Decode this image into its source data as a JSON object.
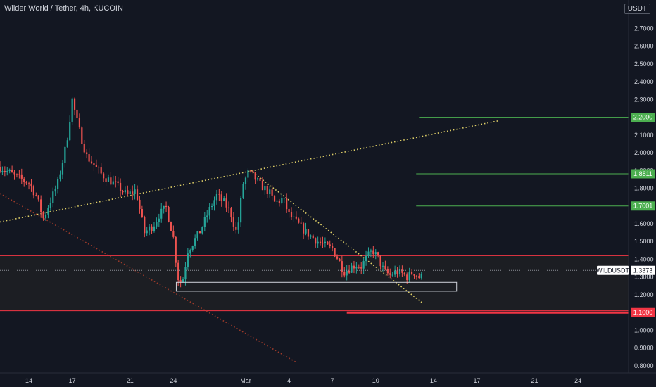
{
  "header": {
    "title": "Wilder World / Tether, 4h, KUCOIN",
    "currency": "USDT"
  },
  "chart_data": {
    "type": "candlestick",
    "symbol": "WILDUSDT",
    "last_price": "1.3373",
    "ylim": [
      0.76,
      2.86
    ],
    "y_ticks": [
      "2.7000",
      "2.6000",
      "2.5000",
      "2.4000",
      "2.3000",
      "2.2000",
      "2.1000",
      "2.0000",
      "1.9000",
      "1.8000",
      "1.7000",
      "1.6000",
      "1.5000",
      "1.4000",
      "1.3000",
      "1.2000",
      "1.1000",
      "1.0000",
      "0.9000",
      "0.8000"
    ],
    "x_ticks": [
      {
        "label": "14",
        "day": 14
      },
      {
        "label": "17",
        "day": 17
      },
      {
        "label": "21",
        "day": 21
      },
      {
        "label": "24",
        "day": 24
      },
      {
        "label": "Mar",
        "day": 29
      },
      {
        "label": "4",
        "day": 32
      },
      {
        "label": "7",
        "day": 35
      },
      {
        "label": "10",
        "day": 38
      },
      {
        "label": "14",
        "day": 42
      },
      {
        "label": "17",
        "day": 45
      },
      {
        "label": "21",
        "day": 49
      },
      {
        "label": "24",
        "day": 52
      }
    ],
    "xlim_day": [
      12,
      55.5
    ],
    "key_levels": [
      {
        "label": "2.2000",
        "value": 2.2,
        "color": "#4caf50",
        "from_day": 41
      },
      {
        "label": "1.8811",
        "value": 1.8811,
        "color": "#4caf50",
        "from_day": 40.8
      },
      {
        "label": "1.7001",
        "value": 1.7001,
        "color": "#4caf50",
        "from_day": 40.8
      },
      {
        "label": "1.1000",
        "value": 1.1,
        "color": "#f23645",
        "from_day": 36
      }
    ],
    "zone": {
      "top": 1.42,
      "bottom": 1.11
    },
    "box": {
      "day_start": 24.2,
      "day_end": 43.6,
      "top": 1.27,
      "bottom": 1.22
    },
    "trendlines": [
      {
        "style": "dotted",
        "color": "#e0d068",
        "from": [
          12,
          1.61
        ],
        "to": [
          46.5,
          2.18
        ]
      },
      {
        "style": "dotted",
        "color": "#e0d068",
        "from": [
          29.5,
          1.89
        ],
        "to": [
          41.3,
          1.15
        ]
      },
      {
        "style": "dotted",
        "color": "#9c3a2a",
        "from": [
          12,
          1.77
        ],
        "to": [
          32.5,
          0.82
        ]
      }
    ],
    "price_path": [
      [
        12,
        1.92
      ],
      [
        13,
        1.87
      ],
      [
        14,
        1.83
      ],
      [
        14.5,
        1.76
      ],
      [
        15,
        1.63
      ],
      [
        16,
        1.83
      ],
      [
        16.6,
        2.05
      ],
      [
        17,
        2.3
      ],
      [
        17.4,
        2.15
      ],
      [
        18,
        1.98
      ],
      [
        19,
        1.88
      ],
      [
        20,
        1.82
      ],
      [
        20.8,
        1.76
      ],
      [
        21.4,
        1.79
      ],
      [
        22,
        1.55
      ],
      [
        22.6,
        1.59
      ],
      [
        23,
        1.65
      ],
      [
        23.5,
        1.69
      ],
      [
        24,
        1.52
      ],
      [
        24.3,
        1.3
      ],
      [
        24.6,
        1.26
      ],
      [
        25,
        1.45
      ],
      [
        25.8,
        1.55
      ],
      [
        26.5,
        1.68
      ],
      [
        27,
        1.76
      ],
      [
        27.6,
        1.71
      ],
      [
        28,
        1.65
      ],
      [
        28.4,
        1.54
      ],
      [
        28.8,
        1.82
      ],
      [
        29.2,
        1.89
      ],
      [
        29.6,
        1.86
      ],
      [
        30,
        1.82
      ],
      [
        30.6,
        1.78
      ],
      [
        31,
        1.72
      ],
      [
        31.6,
        1.74
      ],
      [
        32,
        1.65
      ],
      [
        32.6,
        1.6
      ],
      [
        33.2,
        1.55
      ],
      [
        34,
        1.5
      ],
      [
        34.6,
        1.47
      ],
      [
        35,
        1.46
      ],
      [
        35.4,
        1.4
      ],
      [
        35.8,
        1.33
      ],
      [
        36.2,
        1.35
      ],
      [
        36.6,
        1.37
      ],
      [
        37,
        1.36
      ],
      [
        37.4,
        1.41
      ],
      [
        37.8,
        1.45
      ],
      [
        38.2,
        1.4
      ],
      [
        38.6,
        1.33
      ],
      [
        39,
        1.31
      ],
      [
        39.4,
        1.33
      ],
      [
        39.8,
        1.32
      ],
      [
        40.2,
        1.3
      ],
      [
        40.6,
        1.33
      ],
      [
        41,
        1.3
      ],
      [
        41.3,
        1.3
      ]
    ]
  }
}
